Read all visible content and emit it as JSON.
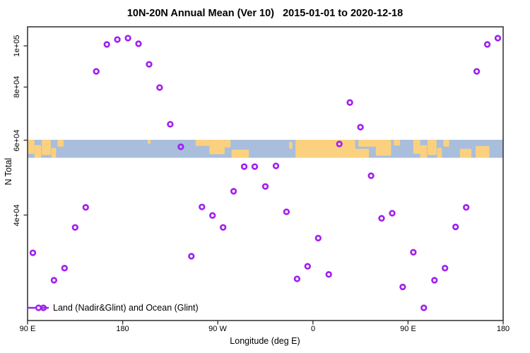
{
  "title": "10N-20N Annual Mean (Ver 10)   2015-01-01 to 2020-12-18",
  "legend": {
    "label": "Land (Nadir&Glint) and Ocean (Glint)"
  },
  "colors": {
    "point": "#A020F0",
    "ocean": "#A9BEDC",
    "land": "#FBD17F",
    "axis": "#3a3a3a",
    "text": "#000000"
  },
  "chart_data": {
    "type": "scatter",
    "title": "10N-20N Annual Mean (Ver 10)   2015-01-01 to 2020-12-18",
    "xlabel": "Longitude (deg E)",
    "ylabel": "N Total",
    "x_axis": {
      "note": "longitude wraps eastward from 90E around the globe 1.25 times",
      "range_deg_e": [
        90,
        540
      ],
      "ticks": [
        {
          "value": 90,
          "label": "90 E"
        },
        {
          "value": 180,
          "label": "180"
        },
        {
          "value": 270,
          "label": "90 W"
        },
        {
          "value": 360,
          "label": "0"
        },
        {
          "value": 450,
          "label": "90 E"
        },
        {
          "value": 540,
          "label": "180"
        }
      ]
    },
    "y_axis": {
      "scale": "log",
      "ticks": [
        {
          "value": 40000,
          "label": "4e+04"
        },
        {
          "value": 60000,
          "label": "6e+04"
        },
        {
          "value": 80000,
          "label": "8e+04"
        },
        {
          "value": 100000,
          "label": "1e+05"
        }
      ]
    },
    "points": {
      "lon_deg_e": [
        95,
        105,
        115,
        125,
        135,
        145,
        155,
        165,
        175,
        185,
        195,
        205,
        215,
        225,
        235,
        245,
        255,
        265,
        275,
        285,
        295,
        305,
        315,
        325,
        335,
        345,
        355,
        365,
        375,
        385,
        395,
        405,
        415,
        425,
        435,
        445,
        455,
        465,
        475,
        485,
        495,
        505,
        515,
        525,
        535
      ],
      "n_total": [
        32600,
        24200,
        28100,
        30000,
        37400,
        41700,
        87100,
        100800,
        103500,
        104300,
        101200,
        90500,
        79800,
        65400,
        57900,
        32000,
        41800,
        39900,
        37400,
        45500,
        52000,
        52000,
        46700,
        52200,
        40700,
        28300,
        30300,
        35300,
        29000,
        58800,
        73600,
        64400,
        49500,
        39300,
        40400,
        27100,
        32700,
        24200,
        28100,
        30000,
        37500,
        41700,
        87100,
        100800,
        104300
      ]
    },
    "map_band": {
      "y_span_n_total": [
        54500,
        60300
      ],
      "ocean_color": "#A9BEDC",
      "land_color": "#FBD17F",
      "land_patches_lon_frac": [
        [
          90,
          96.5,
          0,
          0.78
        ],
        [
          96.5,
          103,
          0.3,
          1
        ],
        [
          103.5,
          112,
          0,
          0.85
        ],
        [
          112.5,
          117,
          0.45,
          1
        ],
        [
          118.5,
          124,
          0,
          0.38
        ],
        [
          203.5,
          206.5,
          0,
          0.22
        ],
        [
          249,
          262,
          0,
          0.34
        ],
        [
          262,
          276.5,
          0,
          0.8
        ],
        [
          276.5,
          282,
          0,
          0.42
        ],
        [
          283,
          299.5,
          0.55,
          1
        ],
        [
          337.5,
          340.5,
          0.12,
          0.5
        ],
        [
          343.5,
          400,
          0,
          1
        ],
        [
          398,
          413,
          0.5,
          1
        ],
        [
          403,
          420,
          0,
          0.38
        ],
        [
          419.5,
          434,
          0,
          0.88
        ],
        [
          436.5,
          442.5,
          0,
          0.32
        ],
        [
          455,
          461.5,
          0,
          0.78
        ],
        [
          461.5,
          468,
          0.3,
          1
        ],
        [
          468.5,
          477,
          0,
          0.85
        ],
        [
          477.5,
          482,
          0.45,
          1
        ],
        [
          483.5,
          489,
          0,
          0.38
        ],
        [
          499,
          510,
          0.5,
          1
        ],
        [
          514,
          527,
          0.35,
          1
        ]
      ]
    }
  }
}
